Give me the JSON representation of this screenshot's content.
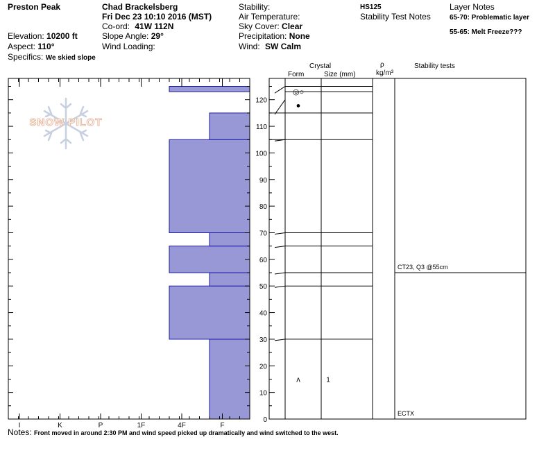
{
  "header": {
    "location": "Preston Peak",
    "observer": "Chad Brackelsberg",
    "datetime": "Fri Dec 23 10:10 2016 (MST)",
    "coord_label": "Co-ord:",
    "coord_value": "41W 112N",
    "elevation_label": "Elevation:",
    "elevation_value": "10200 ft",
    "aspect_label": "Aspect:",
    "aspect_value": "110°",
    "slope_label": "Slope Angle:",
    "slope_value": "29°",
    "wind_loading_label": "Wind Loading:",
    "specifics_label": "Specifics:",
    "specifics_value": "We skied slope",
    "stability_label": "Stability:",
    "air_temp_label": "Air Temperature:",
    "sky_label": "Sky Cover:",
    "sky_value": "Clear",
    "precip_label": "Precipitation:",
    "precip_value": "None",
    "wind_label": "Wind:",
    "wind_value": "SW Calm",
    "hs": "HS125",
    "stability_notes_label": "Stability Test Notes",
    "layer_notes_label": "Layer Notes",
    "layer_note_1": "65-70: Problematic layer",
    "layer_note_2": "55-65: Melt Freeze???"
  },
  "columns": {
    "crystal": "Crystal",
    "form": "Form",
    "size": "Size (mm)",
    "rho": "ρ",
    "density_unit": "kg/m³",
    "stability_tests": "Stability tests"
  },
  "notes": {
    "label": "Notes:",
    "text": "Front moved in around 2:30 PM and wind speed picked up dramatically and wind switched to the west."
  },
  "logo": {
    "text": "SNOW PILOT"
  },
  "colors": {
    "bar_fill": "#9898d6",
    "bar_stroke": "#1a1aa0",
    "logo": "#e9b9a0",
    "flake": "#c8d0e0"
  },
  "chart_data": {
    "type": "bar",
    "orientation": "horizontal",
    "hardness_categories": [
      "I",
      "K",
      "P",
      "1F",
      "4F",
      "F"
    ],
    "ylim": [
      0,
      128
    ],
    "y_ticks": [
      0,
      10,
      20,
      30,
      40,
      50,
      60,
      70,
      80,
      90,
      100,
      110,
      120
    ],
    "layers": [
      {
        "bottom": 0,
        "top": 30,
        "hardness": 4
      },
      {
        "bottom": 30,
        "top": 50,
        "hardness": 3
      },
      {
        "bottom": 50,
        "top": 55,
        "hardness": 4
      },
      {
        "bottom": 55,
        "top": 65,
        "hardness": 3
      },
      {
        "bottom": 65,
        "top": 70,
        "hardness": 4
      },
      {
        "bottom": 70,
        "top": 105,
        "hardness": 3
      },
      {
        "bottom": 105,
        "top": 115,
        "hardness": 4
      },
      {
        "bottom": 115,
        "top": 123,
        "hardness": 5
      },
      {
        "bottom": 123,
        "top": 125,
        "hardness": 3
      }
    ],
    "crystals": [
      {
        "depth": 123,
        "form": "◎○"
      },
      {
        "depth": 118,
        "form": "●"
      },
      {
        "depth": 15,
        "form": "ʌ",
        "size": "1"
      }
    ],
    "stability_tests": [
      {
        "depth": 55,
        "label": "CT23, Q3 @55cm"
      },
      {
        "depth": 0,
        "label": "ECTX"
      }
    ]
  }
}
